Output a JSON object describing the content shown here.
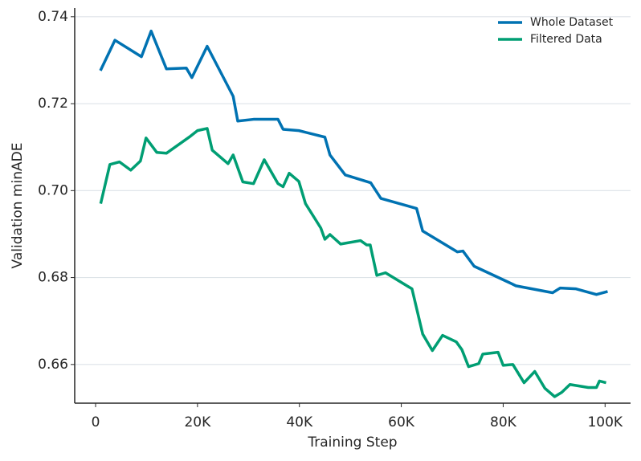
{
  "chart_data": {
    "type": "line",
    "xlabel": "Training Step",
    "ylabel": "Validation minADE",
    "xlim": [
      -4100,
      105000
    ],
    "ylim": [
      0.6511,
      0.742
    ],
    "xticks": [
      0,
      {
        "value": 20000,
        "label": "20K"
      },
      {
        "value": 40000,
        "label": "40K"
      },
      {
        "value": 60000,
        "label": "60K"
      },
      {
        "value": 80000,
        "label": "80K"
      },
      {
        "value": 100000,
        "label": "100K"
      }
    ],
    "yticks": [
      0.66,
      0.68,
      {
        "value": 0.7,
        "label": "0.70"
      },
      0.72,
      0.74
    ],
    "grid": true,
    "legend": "upper right",
    "series": [
      {
        "name": "Whole Dataset",
        "color": "#0072b2",
        "x": [
          950,
          3800,
          9000,
          10900,
          13900,
          17800,
          18900,
          21900,
          27000,
          27900,
          31000,
          35800,
          36800,
          39900,
          45000,
          46000,
          49000,
          54000,
          56000,
          63000,
          64200,
          71000,
          72100,
          74300,
          80900,
          82500,
          89700,
          91200,
          94300,
          98300,
          100500
        ],
        "values": [
          0.7276,
          0.7346,
          0.7308,
          0.7367,
          0.728,
          0.7282,
          0.726,
          0.7332,
          0.7217,
          0.716,
          0.7164,
          0.7164,
          0.7141,
          0.7138,
          0.7123,
          0.7082,
          0.7036,
          0.7018,
          0.6982,
          0.6959,
          0.6907,
          0.6859,
          0.6861,
          0.6826,
          0.679,
          0.6781,
          0.6765,
          0.6776,
          0.6774,
          0.6761,
          0.6768
        ]
      },
      {
        "name": "Filtered Data",
        "color": "#009e73",
        "x": [
          1000,
          2800,
          4700,
          6900,
          8800,
          9900,
          12000,
          13900,
          18600,
          20000,
          21900,
          22900,
          26000,
          27000,
          28900,
          31000,
          33100,
          35800,
          36800,
          38000,
          39900,
          41200,
          44200,
          45000,
          46000,
          48100,
          52000,
          53200,
          53900,
          55200,
          56900,
          62100,
          64200,
          66100,
          68100,
          70800,
          71900,
          73200,
          75200,
          76000,
          79000,
          80000,
          81900,
          84100,
          86200,
          88200,
          90100,
          91500,
          93100,
          96700,
          98300,
          98900,
          100200
        ],
        "values": [
          0.697,
          0.706,
          0.7066,
          0.7047,
          0.7068,
          0.7121,
          0.7088,
          0.7086,
          0.7125,
          0.7138,
          0.7143,
          0.7093,
          0.7062,
          0.7082,
          0.702,
          0.7016,
          0.7071,
          0.7016,
          0.7009,
          0.704,
          0.7021,
          0.697,
          0.6914,
          0.6888,
          0.6899,
          0.6877,
          0.6885,
          0.6875,
          0.6875,
          0.6805,
          0.6811,
          0.6774,
          0.667,
          0.6632,
          0.6667,
          0.6652,
          0.6634,
          0.6595,
          0.6602,
          0.6624,
          0.6628,
          0.6598,
          0.66,
          0.6558,
          0.6584,
          0.6545,
          0.6526,
          0.6536,
          0.6554,
          0.6547,
          0.6547,
          0.6562,
          0.6558
        ]
      }
    ]
  }
}
